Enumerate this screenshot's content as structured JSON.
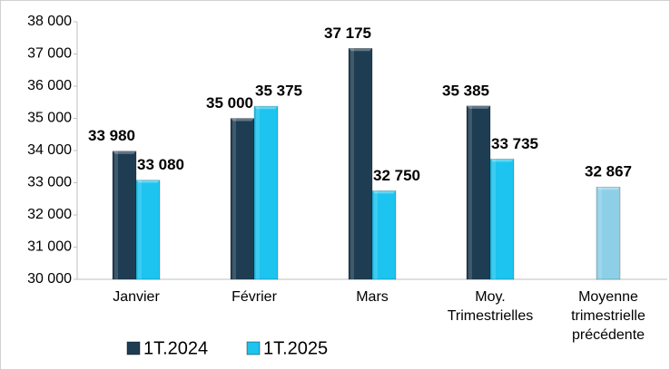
{
  "chart_data": {
    "type": "bar",
    "categories": [
      "Janvier",
      "Février",
      "Mars",
      "Moy.\nTrimestrielles",
      "Moyenne\ntrimestrielle\nprécédente"
    ],
    "series": [
      {
        "name": "1T.2024",
        "color": "#1f3d52",
        "values": [
          33980,
          35000,
          37175,
          35385,
          null
        ],
        "value_labels": [
          "33 980",
          "35 000",
          "37 175",
          "35 385",
          null
        ]
      },
      {
        "name": "1T.2025",
        "color": "#1cc4ef",
        "point_colors": [
          null,
          null,
          null,
          null,
          "#8ecfe8"
        ],
        "values": [
          33080,
          35375,
          32750,
          33735,
          32867
        ],
        "value_labels": [
          "33 080",
          "35 375",
          "32 750",
          "33 735",
          "32 867"
        ]
      }
    ],
    "ylim": [
      30000,
      38000
    ],
    "yticks": [
      {
        "value": 30000,
        "label": "30 000"
      },
      {
        "value": 31000,
        "label": "31 000"
      },
      {
        "value": 32000,
        "label": "32 000"
      },
      {
        "value": 33000,
        "label": "33 000"
      },
      {
        "value": 34000,
        "label": "34 000"
      },
      {
        "value": 35000,
        "label": "35 000"
      },
      {
        "value": 36000,
        "label": "36 000"
      },
      {
        "value": 37000,
        "label": "37 000"
      },
      {
        "value": 38000,
        "label": "38 000"
      }
    ],
    "legend": "bottom"
  }
}
